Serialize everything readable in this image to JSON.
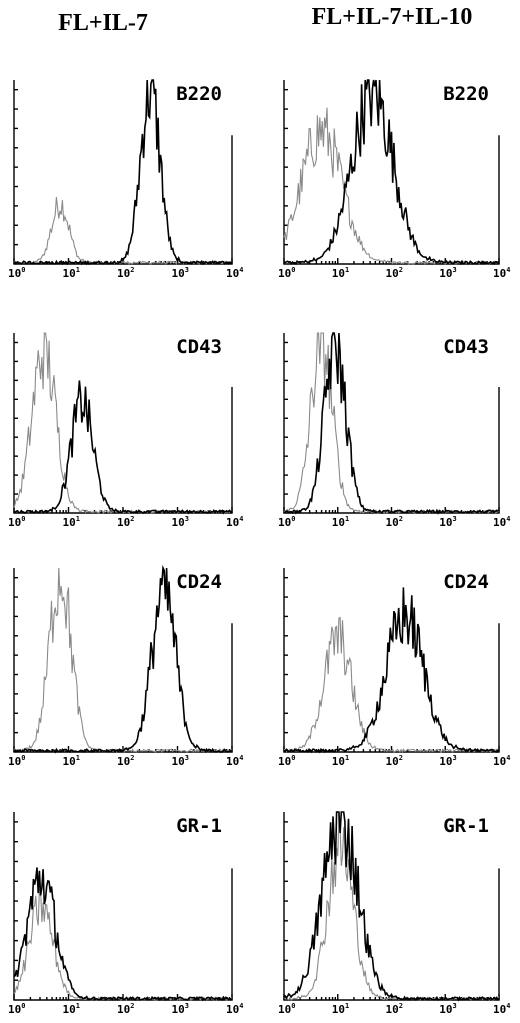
{
  "column_titles": [
    "FL+IL-7",
    "FL+IL-7+IL-10"
  ],
  "chart_data": [
    {
      "type": "line",
      "col": 0,
      "row": 0,
      "marker": "B220",
      "xscale": "log",
      "xlim": [
        1,
        10000
      ],
      "ylim": [
        0,
        1
      ],
      "x_ticks": [
        "10^0",
        "10^1",
        "10^2",
        "10^3",
        "10^4"
      ],
      "series": [
        {
          "color": "#8a8a8a",
          "peak_log": 0.85,
          "width": 0.16,
          "height": 0.33
        },
        {
          "color": "#000000",
          "peak_log": 2.5,
          "width": 0.18,
          "height": 0.95
        }
      ]
    },
    {
      "type": "line",
      "col": 1,
      "row": 0,
      "marker": "B220",
      "xscale": "log",
      "xlim": [
        1,
        10000
      ],
      "ylim": [
        0,
        1
      ],
      "x_ticks": [
        "10^0",
        "10^1",
        "10^2",
        "10^3",
        "10^4"
      ],
      "series": [
        {
          "color": "#8a8a8a",
          "peak_log": 0.7,
          "width": 0.38,
          "height": 0.72
        },
        {
          "color": "#000000",
          "peak_log": 1.65,
          "width": 0.38,
          "height": 0.93
        }
      ]
    },
    {
      "type": "line",
      "col": 0,
      "row": 1,
      "marker": "CD43",
      "xscale": "log",
      "xlim": [
        1,
        10000
      ],
      "ylim": [
        0,
        1
      ],
      "x_ticks": [
        "10^0",
        "10^1",
        "10^2",
        "10^3",
        "10^4"
      ],
      "series": [
        {
          "color": "#8a8a8a",
          "peak_log": 0.55,
          "width": 0.22,
          "height": 0.9
        },
        {
          "color": "#000000",
          "peak_log": 1.25,
          "width": 0.2,
          "height": 0.62
        }
      ]
    },
    {
      "type": "line",
      "col": 1,
      "row": 1,
      "marker": "CD43",
      "xscale": "log",
      "xlim": [
        1,
        10000
      ],
      "ylim": [
        0,
        1
      ],
      "x_ticks": [
        "10^0",
        "10^1",
        "10^2",
        "10^3",
        "10^4"
      ],
      "series": [
        {
          "color": "#8a8a8a",
          "peak_log": 0.7,
          "width": 0.2,
          "height": 0.95
        },
        {
          "color": "#000000",
          "peak_log": 0.95,
          "width": 0.2,
          "height": 0.93
        }
      ]
    },
    {
      "type": "line",
      "col": 0,
      "row": 2,
      "marker": "CD24",
      "xscale": "log",
      "xlim": [
        1,
        10000
      ],
      "ylim": [
        0,
        1
      ],
      "x_ticks": [
        "10^0",
        "10^1",
        "10^2",
        "10^3",
        "10^4"
      ],
      "series": [
        {
          "color": "#8a8a8a",
          "peak_log": 0.85,
          "width": 0.2,
          "height": 0.97
        },
        {
          "color": "#000000",
          "peak_log": 2.75,
          "width": 0.22,
          "height": 0.88
        }
      ]
    },
    {
      "type": "line",
      "col": 1,
      "row": 2,
      "marker": "CD24",
      "xscale": "log",
      "xlim": [
        1,
        10000
      ],
      "ylim": [
        0,
        1
      ],
      "x_ticks": [
        "10^0",
        "10^1",
        "10^2",
        "10^3",
        "10^4"
      ],
      "series": [
        {
          "color": "#8a8a8a",
          "peak_log": 1.0,
          "width": 0.26,
          "height": 0.62
        },
        {
          "color": "#000000",
          "peak_log": 2.25,
          "width": 0.35,
          "height": 0.74
        }
      ]
    },
    {
      "type": "line",
      "col": 0,
      "row": 3,
      "marker": "GR-1",
      "xscale": "log",
      "xlim": [
        1,
        10000
      ],
      "ylim": [
        0,
        1
      ],
      "x_ticks": [
        "10^0",
        "10^1",
        "10^2",
        "10^3",
        "10^4"
      ],
      "series": [
        {
          "color": "#8a8a8a",
          "peak_log": 0.5,
          "width": 0.22,
          "height": 0.5
        },
        {
          "color": "#000000",
          "peak_log": 0.5,
          "width": 0.26,
          "height": 0.65
        }
      ]
    },
    {
      "type": "line",
      "col": 1,
      "row": 3,
      "marker": "GR-1",
      "xscale": "log",
      "xlim": [
        1,
        10000
      ],
      "ylim": [
        0,
        1
      ],
      "x_ticks": [
        "10^0",
        "10^1",
        "10^2",
        "10^3",
        "10^4"
      ],
      "series": [
        {
          "color": "#8a8a8a",
          "peak_log": 1.05,
          "width": 0.24,
          "height": 0.82
        },
        {
          "color": "#000000",
          "peak_log": 1.05,
          "width": 0.33,
          "height": 0.97
        }
      ]
    }
  ]
}
